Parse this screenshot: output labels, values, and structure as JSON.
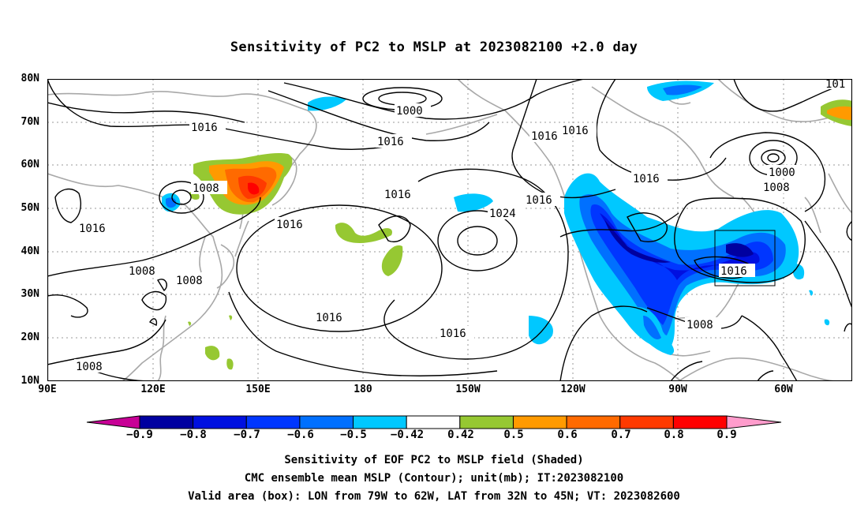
{
  "title": "Sensitivity of PC2 to MSLP at 2023082100 +2.0 day",
  "lat_ticks": [
    "80N",
    "70N",
    "60N",
    "50N",
    "40N",
    "30N",
    "20N",
    "10N"
  ],
  "lon_ticks": [
    "90E",
    "120E",
    "150E",
    "180",
    "150W",
    "120W",
    "90W",
    "60W"
  ],
  "contour_labels": [
    "1000",
    "1016",
    "1016",
    "1016",
    "1016",
    "1016",
    "1016",
    "1016",
    "1016",
    "1016",
    "1016",
    "1016",
    "1016",
    "1008",
    "1008",
    "1008",
    "1008",
    "1008",
    "1008",
    "1000",
    "1024",
    "101"
  ],
  "colorbar": {
    "labels": [
      "−0.9",
      "−0.8",
      "−0.7",
      "−0.6",
      "−0.5",
      "−0.42",
      "0.42",
      "0.5",
      "0.6",
      "0.7",
      "0.8",
      "0.9"
    ],
    "colors": [
      "#0000a0",
      "#0010e0",
      "#0036ff",
      "#0070ff",
      "#00c8ff",
      "#ffffff",
      "#96c832",
      "#ff9a00",
      "#ff6a00",
      "#ff3a00",
      "#ff0000"
    ],
    "under_color": "#c80096",
    "over_color": "#ff9ccc"
  },
  "captions": [
    "Sensitivity of EOF PC2 to MSLP field (Shaded)",
    "CMC ensemble mean MSLP (Contour); unit(mb); IT:2023082100",
    "Valid area (box): LON from 79W to 62W, LAT from 32N to 45N; VT: 2023082600"
  ]
}
